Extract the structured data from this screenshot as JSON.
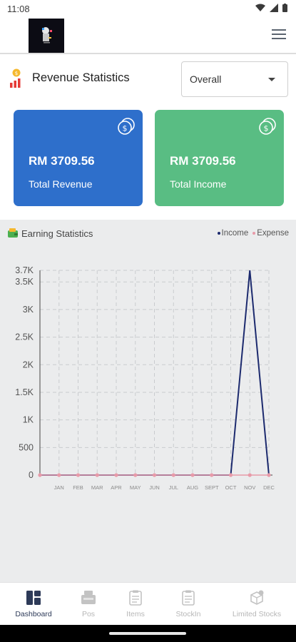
{
  "status_bar": {
    "time": "11:08"
  },
  "header": {
    "title": "Revenue Statistics",
    "filter_value": "Overall"
  },
  "cards": [
    {
      "amount": "RM 3709.56",
      "label": "Total Revenue",
      "color": "#2e6fcb"
    },
    {
      "amount": "RM 3709.56",
      "label": "Total Income",
      "color": "#59bd83"
    }
  ],
  "earning": {
    "title": "Earning Statistics",
    "legend": [
      {
        "name": "Income",
        "color": "#1c2a6e"
      },
      {
        "name": "Expense",
        "color": "#e89aa8"
      }
    ]
  },
  "chart_data": {
    "type": "line",
    "title": "Earning Statistics",
    "categories": [
      "",
      "JAN",
      "FEB",
      "MAR",
      "APR",
      "MAY",
      "JUN",
      "JUL",
      "AUG",
      "SEPT",
      "OCT",
      "NOV",
      "DEC"
    ],
    "series": [
      {
        "name": "Income",
        "color": "#1c2a6e",
        "values": [
          0,
          0,
          0,
          0,
          0,
          0,
          0,
          0,
          0,
          0,
          0,
          3709.56,
          0
        ]
      },
      {
        "name": "Expense",
        "color": "#e89aa8",
        "values": [
          0,
          0,
          0,
          0,
          0,
          0,
          0,
          0,
          0,
          0,
          0,
          0,
          0
        ]
      }
    ],
    "yticks": [
      {
        "value": 0,
        "label": "0"
      },
      {
        "value": 500,
        "label": "500"
      },
      {
        "value": 1000,
        "label": "1K"
      },
      {
        "value": 1500,
        "label": "1.5K"
      },
      {
        "value": 2000,
        "label": "2K"
      },
      {
        "value": 2500,
        "label": "2.5K"
      },
      {
        "value": 3000,
        "label": "3K"
      },
      {
        "value": 3500,
        "label": "3.5K"
      },
      {
        "value": 3709.56,
        "label": "3.7K"
      }
    ],
    "ylim": [
      0,
      3709.56
    ],
    "grid": true,
    "legend_position": "top-right"
  },
  "bottom_nav": [
    {
      "label": "Dashboard",
      "icon": "dashboard-icon",
      "active": true
    },
    {
      "label": "Pos",
      "icon": "pos-icon",
      "active": false
    },
    {
      "label": "Items",
      "icon": "items-icon",
      "active": false
    },
    {
      "label": "StockIn",
      "icon": "stockin-icon",
      "active": false
    },
    {
      "label": "Limited Stocks",
      "icon": "limited-stocks-icon",
      "active": false
    }
  ]
}
